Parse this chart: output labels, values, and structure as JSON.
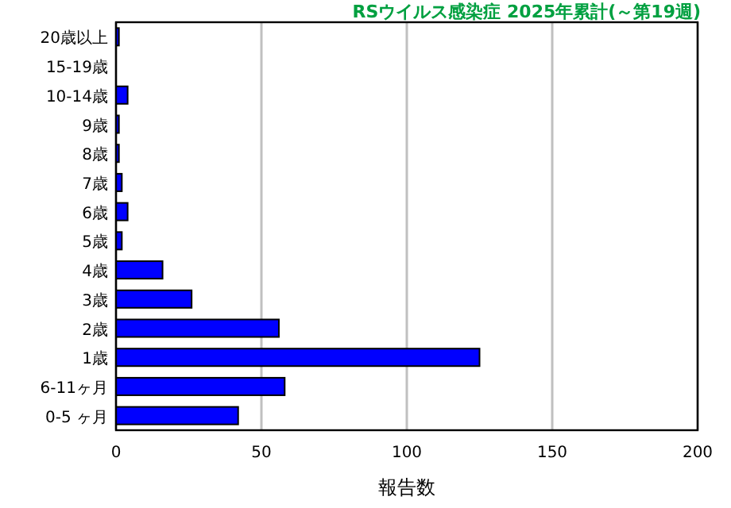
{
  "chart_data": {
    "type": "bar",
    "orientation": "horizontal",
    "title": "RSウイルス感染症 2025年累計(～第19週)",
    "xlabel": "報告数",
    "categories": [
      "20歳以上",
      "15-19歳",
      "10-14歳",
      "9歳",
      "8歳",
      "7歳",
      "6歳",
      "5歳",
      "4歳",
      "3歳",
      "2歳",
      "1歳",
      "6-11ヶ月",
      "0-5 ヶ月"
    ],
    "values": [
      1,
      0,
      4,
      1,
      1,
      2,
      4,
      2,
      16,
      26,
      56,
      125,
      58,
      42
    ],
    "color": "#0000ff",
    "xlim": [
      0,
      200
    ],
    "xticks": [
      0,
      50,
      100,
      150,
      200
    ],
    "grid": "x"
  }
}
